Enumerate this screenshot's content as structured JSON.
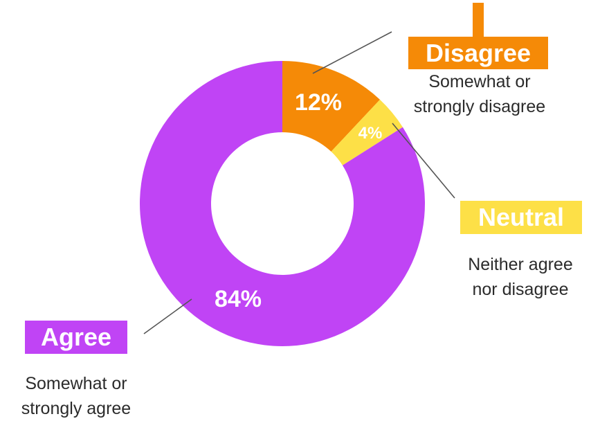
{
  "chart_data": {
    "type": "pie",
    "donut": true,
    "slices": [
      {
        "key": "disagree",
        "label": "Disagree",
        "description": "Somewhat or\nstrongly disagree",
        "value": 12,
        "value_label": "12%",
        "color": "#f58a07"
      },
      {
        "key": "neutral",
        "label": "Neutral",
        "description": "Neither agree\nnor disagree",
        "value": 4,
        "value_label": "4%",
        "color": "#fde047"
      },
      {
        "key": "agree",
        "label": "Agree",
        "description": "Somewhat or\nstrongly agree",
        "value": 84,
        "value_label": "84%",
        "color": "#c044f5"
      }
    ],
    "legend": "callouts"
  }
}
